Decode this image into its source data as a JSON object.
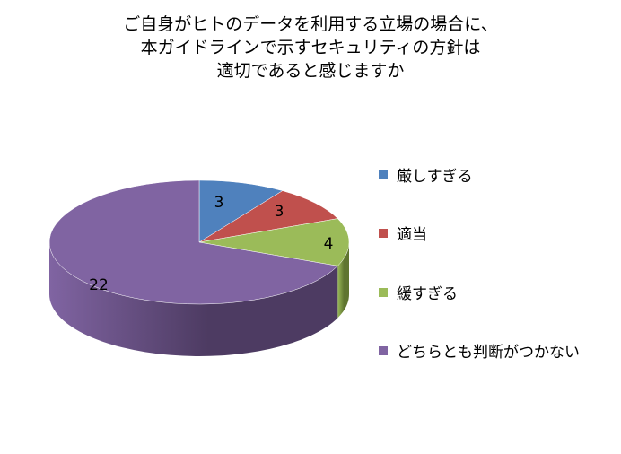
{
  "chart_data": {
    "type": "pie",
    "title_lines": [
      "ご自身がヒトのデータを利用する立場の場合に、",
      "本ガイドラインで示すセキュリティの方針は",
      "適切であると感じますか"
    ],
    "categories": [
      "厳しすぎる",
      "適当",
      "緩すぎる",
      "どちらとも判断がつかない"
    ],
    "values": [
      3,
      3,
      4,
      22
    ],
    "colors": [
      "#4F81BD",
      "#C0504D",
      "#9BBB59",
      "#8064A2"
    ],
    "side_colors": [
      "#2c4d75",
      "#772c2a",
      "#5f7530",
      "#4d3b62"
    ],
    "three_d": true,
    "legend_position": "right"
  }
}
